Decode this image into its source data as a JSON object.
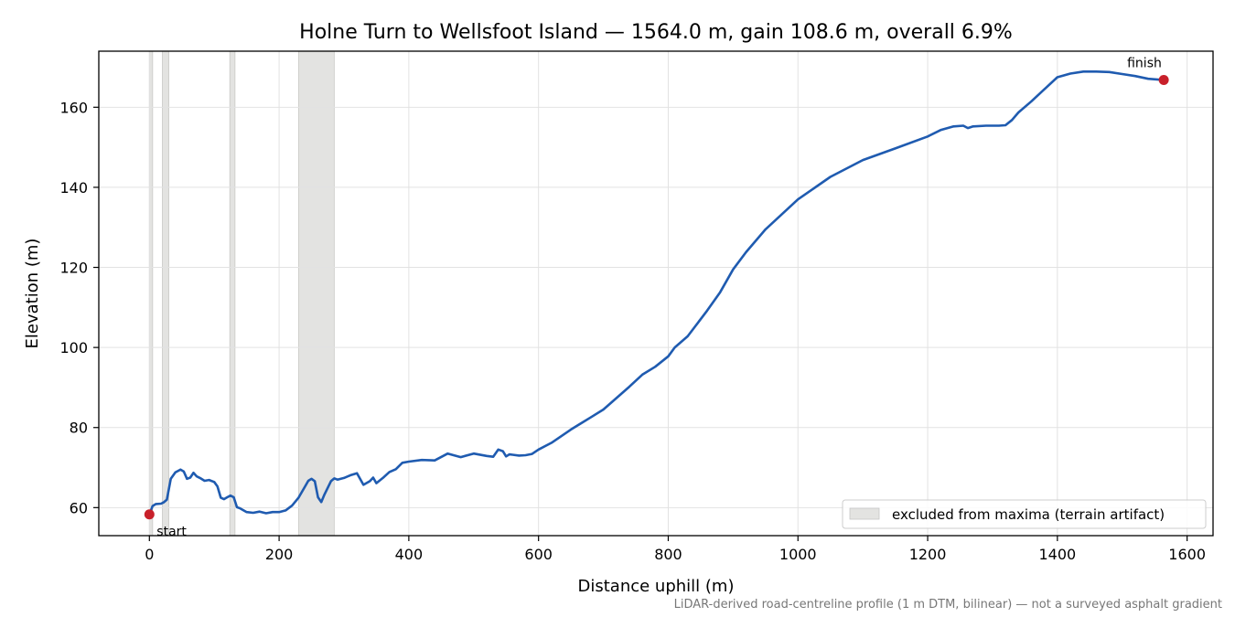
{
  "chart_data": {
    "type": "line",
    "title": "Holne Turn to Wellsfoot Island — 1564.0 m, gain 108.6 m, overall 6.9%",
    "xlabel": "Distance uphill (m)",
    "ylabel": "Elevation (m)",
    "xlim": [
      -78,
      1640
    ],
    "ylim": [
      53,
      174
    ],
    "xticks": [
      0,
      200,
      400,
      600,
      800,
      1000,
      1200,
      1400,
      1600
    ],
    "yticks": [
      60,
      80,
      100,
      120,
      140,
      160
    ],
    "grid": true,
    "legend": {
      "position": "lower right",
      "entries": [
        "excluded from maxima (terrain artifact)"
      ]
    },
    "series": [
      {
        "color": "#1f5bb0",
        "x": [
          0,
          5,
          10,
          18,
          22,
          27,
          33,
          40,
          48,
          53,
          58,
          63,
          68,
          73,
          78,
          85,
          92,
          100,
          105,
          110,
          115,
          120,
          125,
          130,
          135,
          140,
          150,
          160,
          170,
          180,
          190,
          200,
          210,
          220,
          230,
          240,
          245,
          250,
          255,
          260,
          265,
          270,
          280,
          285,
          290,
          300,
          310,
          320,
          330,
          340,
          345,
          350,
          360,
          370,
          380,
          390,
          400,
          420,
          440,
          460,
          480,
          500,
          520,
          530,
          538,
          545,
          550,
          555,
          560,
          570,
          580,
          590,
          600,
          620,
          650,
          680,
          700,
          740,
          760,
          780,
          800,
          810,
          830,
          860,
          880,
          900,
          920,
          950,
          1000,
          1050,
          1100,
          1150,
          1200,
          1220,
          1240,
          1255,
          1262,
          1270,
          1290,
          1310,
          1320,
          1330,
          1340,
          1360,
          1380,
          1400,
          1420,
          1440,
          1460,
          1480,
          1500,
          1520,
          1540,
          1564
        ],
        "y": [
          58.3,
          60.4,
          60.9,
          61,
          61.3,
          62,
          67.2,
          68.8,
          69.5,
          69,
          67.2,
          67.5,
          68.7,
          67.8,
          67.4,
          66.7,
          66.9,
          66.4,
          65.3,
          62.5,
          62.1,
          62.6,
          63,
          62.6,
          60.1,
          59.8,
          58.9,
          58.7,
          59,
          58.6,
          58.9,
          58.9,
          59.3,
          60.5,
          62.5,
          65.3,
          66.7,
          67.2,
          66.6,
          62.6,
          61.4,
          63.3,
          66.6,
          67.3,
          67,
          67.4,
          68.1,
          68.6,
          65.7,
          66.6,
          67.5,
          66.1,
          67.4,
          68.9,
          69.6,
          71.2,
          71.5,
          71.9,
          71.8,
          73.5,
          72.6,
          73.5,
          72.9,
          72.7,
          74.5,
          74.1,
          72.8,
          73.3,
          73.2,
          73,
          73.1,
          73.4,
          74.5,
          76.2,
          79.5,
          82.5,
          84.5,
          90.2,
          93.2,
          95.2,
          97.8,
          100,
          102.8,
          109.2,
          113.8,
          119.5,
          123.8,
          129.5,
          137,
          142.6,
          146.8,
          149.7,
          152.7,
          154.3,
          155.2,
          155.4,
          154.8,
          155.2,
          155.4,
          155.4,
          155.5,
          156.8,
          158.7,
          161.5,
          164.5,
          167.5,
          168.4,
          168.9,
          168.9,
          168.8,
          168.3,
          167.8,
          167.1,
          166.8
        ]
      }
    ],
    "excluded_ranges": [
      [
        0,
        5
      ],
      [
        20,
        30
      ],
      [
        124,
        132
      ],
      [
        230,
        285
      ]
    ],
    "markers": [
      {
        "label": "start",
        "x": 0,
        "y": 58.3
      },
      {
        "label": "finish",
        "x": 1564,
        "y": 166.8
      }
    ],
    "colors": {
      "line": "#1f5bb0",
      "marker": "#c8202a",
      "excluded": "#e3e3e1",
      "grid": "#e2e2e2"
    },
    "footnote": "LiDAR-derived road-centreline profile (1 m DTM, bilinear) — not a surveyed asphalt gradient"
  }
}
